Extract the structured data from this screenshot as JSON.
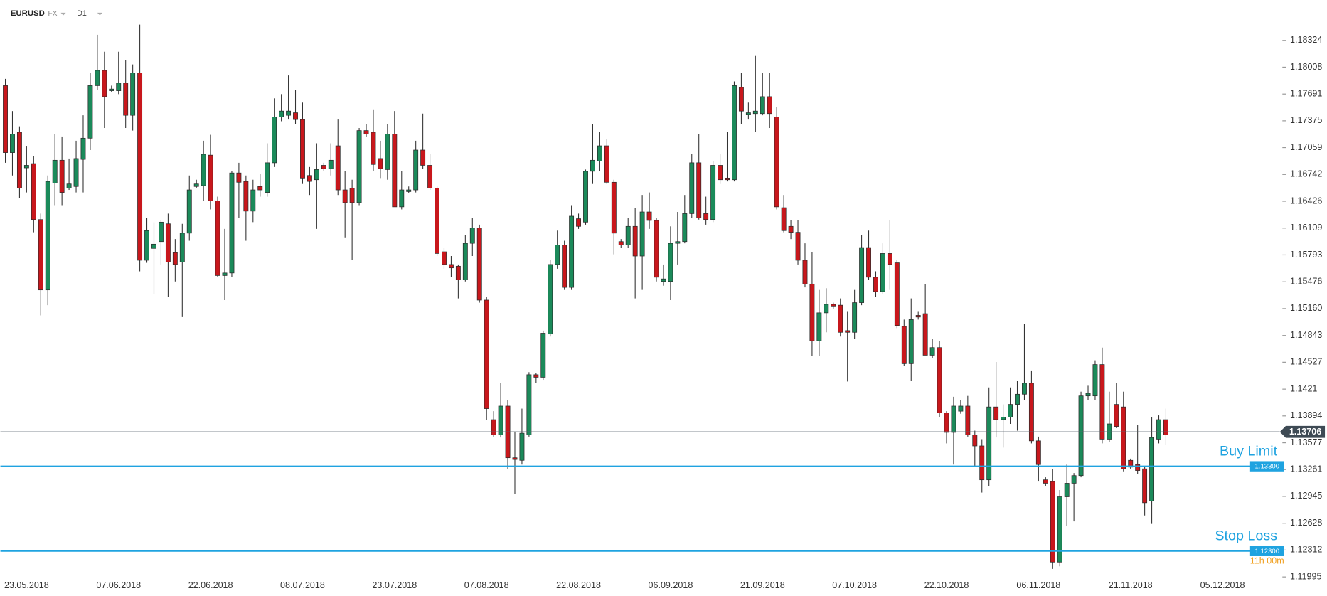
{
  "header": {
    "symbol": "EURUSD",
    "market": "FX",
    "timeframe": "D1"
  },
  "chart_data": {
    "type": "candlestick",
    "up_color": "#1b8a5a",
    "down_color": "#c8171c",
    "grid": false,
    "xlim": [
      -0.7,
      179.5
    ],
    "xticks": [
      {
        "value": 3,
        "label": "23.05.2018"
      },
      {
        "value": 16,
        "label": "07.06.2018"
      },
      {
        "value": 29,
        "label": "22.06.2018"
      },
      {
        "value": 42,
        "label": "08.07.2018"
      },
      {
        "value": 55,
        "label": "23.07.2018"
      },
      {
        "value": 68,
        "label": "07.08.2018"
      },
      {
        "value": 81,
        "label": "22.08.2018"
      },
      {
        "value": 94,
        "label": "06.09.2018"
      },
      {
        "value": 107,
        "label": "21.09.2018"
      },
      {
        "value": 120,
        "label": "07.10.2018"
      },
      {
        "value": 133,
        "label": "22.10.2018"
      },
      {
        "value": 146,
        "label": "06.11.2018"
      },
      {
        "value": 159,
        "label": "21.11.2018"
      },
      {
        "value": 172,
        "label": "05.12.2018"
      }
    ],
    "ylim": [
      1.1183,
      1.187
    ],
    "yticks": [
      1.18324,
      1.18008,
      1.17691,
      1.17375,
      1.17059,
      1.16742,
      1.16426,
      1.16109,
      1.15793,
      1.15476,
      {
        "value": 1.1516,
        "label": "1.15160"
      },
      1.14843,
      1.14527,
      1.1421,
      1.13894,
      1.13577,
      1.13261,
      1.12945,
      1.12628,
      1.12312,
      1.11995
    ],
    "current_price": {
      "value": 1.13706,
      "label": "1.13706"
    },
    "orders": [
      {
        "label": "Buy Limit",
        "price": {
          "value": 1.133,
          "label": "1.13300"
        },
        "color": "#1fa3e0"
      },
      {
        "label": "Stop Loss",
        "price": {
          "value": 1.123,
          "label": "1.12300"
        },
        "color": "#1fa3e0"
      }
    ],
    "countdown": "11h 00m",
    "open": [
      1.1779,
      1.17,
      1.1724,
      1.1682,
      1.1687,
      1.1621,
      1.1538,
      1.1664,
      1.1691,
      1.1658,
      1.166,
      1.1692,
      1.1717,
      1.1779,
      1.1797,
      1.1773,
      1.1773,
      1.1782,
      1.1744,
      1.1794,
      1.1573,
      1.1587,
      1.1595,
      1.1616,
      1.1582,
      1.1571,
      1.1605,
      1.166,
      1.1661,
      1.1697,
      1.1643,
      1.1555,
      1.1558,
      1.1676,
      1.1666,
      1.1631,
      1.166,
      1.1653,
      1.1688,
      1.1742,
      1.1744,
      1.1747,
      1.1739,
      1.1673,
      1.1668,
      1.1685,
      1.1681,
      1.1708,
      1.1656,
      1.1658,
      1.1641,
      1.1726,
      1.1724,
      1.1693,
      1.168,
      1.1722,
      1.1636,
      1.1654,
      1.1656,
      1.1703,
      1.1685,
      1.1658,
      1.1583,
      1.1568,
      1.1566,
      1.155,
      1.1593,
      1.1611,
      1.1526,
      1.1385,
      1.1367,
      1.1401,
      1.134,
      1.1337,
      1.1367,
      1.1438,
      1.1435,
      1.1486,
      1.1568,
      1.1591,
      1.1541,
      1.1622,
      1.1618,
      1.1678,
      1.169,
      1.1708,
      1.1665,
      1.1595,
      1.1591,
      1.1613,
      1.1578,
      1.163,
      1.162,
      1.1548,
      1.1548,
      1.1593,
      1.1595,
      1.1628,
      1.1688,
      1.1628,
      1.1621,
      1.1685,
      1.167,
      1.1668,
      1.1777,
      1.1745,
      1.1746,
      1.1746,
      1.1766,
      1.1742,
      1.1635,
      1.1613,
      1.1606,
      1.1573,
      1.1545,
      1.1478,
      1.1511,
      1.1521,
      1.152,
      1.149,
      1.1488,
      1.1523,
      1.1588,
      1.1553,
      1.1536,
      1.1581,
      1.157,
      1.1495,
      1.1451,
      1.1508,
      1.151,
      1.1461,
      1.147,
      1.1393,
      1.137,
      1.1395,
      1.1401,
      1.1367,
      1.1354,
      1.1314,
      1.14,
      1.1385,
      1.1388,
      1.1403,
      1.1415,
      1.1428,
      1.136,
      1.1314,
      1.1312,
      1.1217,
      1.1294,
      1.131,
      1.1319,
      1.1413,
      1.1413,
      1.145,
      1.1362,
      1.1403,
      1.14,
      1.1337,
      1.1332,
      1.1327,
      1.1289,
      1.1362,
      1.1385
    ],
    "high": [
      1.1787,
      1.1749,
      1.1731,
      1.1708,
      1.1696,
      1.1628,
      1.1673,
      1.1722,
      1.1719,
      1.1693,
      1.1714,
      1.1744,
      1.1794,
      1.1839,
      1.1819,
      1.1779,
      1.1819,
      1.1809,
      1.1804,
      1.1851,
      1.1623,
      1.1618,
      1.162,
      1.1628,
      1.1598,
      1.1616,
      1.1673,
      1.1668,
      1.1714,
      1.1721,
      1.1648,
      1.161,
      1.1678,
      1.1688,
      1.1673,
      1.1668,
      1.1675,
      1.1711,
      1.1764,
      1.1769,
      1.1791,
      1.1774,
      1.1759,
      1.1683,
      1.1711,
      1.1688,
      1.1711,
      1.1739,
      1.1678,
      1.1668,
      1.1729,
      1.1734,
      1.1751,
      1.1714,
      1.1734,
      1.1749,
      1.1678,
      1.166,
      1.1714,
      1.1746,
      1.1698,
      1.166,
      1.1588,
      1.1578,
      1.1568,
      1.1603,
      1.1623,
      1.1615,
      1.153,
      1.1395,
      1.1428,
      1.1408,
      1.1371,
      1.1398,
      1.1441,
      1.144,
      1.149,
      1.1573,
      1.1608,
      1.1596,
      1.1638,
      1.1628,
      1.168,
      1.1734,
      1.1724,
      1.1716,
      1.1668,
      1.1598,
      1.1623,
      1.1635,
      1.165,
      1.1653,
      1.1623,
      1.1568,
      1.1613,
      1.163,
      1.165,
      1.1698,
      1.1722,
      1.1648,
      1.169,
      1.1698,
      1.1724,
      1.1784,
      1.1794,
      1.1759,
      1.1814,
      1.1794,
      1.1794,
      1.1754,
      1.165,
      1.162,
      1.162,
      1.1593,
      1.1583,
      1.1538,
      1.154,
      1.1523,
      1.1528,
      1.1513,
      1.1538,
      1.1603,
      1.1608,
      1.156,
      1.1593,
      1.162,
      1.1573,
      1.1503,
      1.1528,
      1.1513,
      1.1545,
      1.148,
      1.1478,
      1.1395,
      1.1412,
      1.1408,
      1.1413,
      1.1372,
      1.1362,
      1.1423,
      1.1453,
      1.1403,
      1.1423,
      1.1431,
      1.1498,
      1.1443,
      1.1365,
      1.1317,
      1.1327,
      1.1302,
      1.1332,
      1.1322,
      1.1418,
      1.1425,
      1.1455,
      1.147,
      1.1418,
      1.1428,
      1.1418,
      1.1339,
      1.1379,
      1.1329,
      1.1388,
      1.139,
      1.1398
    ],
    "low": [
      1.1688,
      1.1673,
      1.1646,
      1.1653,
      1.1606,
      1.1508,
      1.152,
      1.1638,
      1.1638,
      1.1656,
      1.1653,
      1.1653,
      1.1703,
      1.1774,
      1.1729,
      1.1771,
      1.1769,
      1.1729,
      1.1726,
      1.156,
      1.157,
      1.1533,
      1.1568,
      1.153,
      1.1548,
      1.1506,
      1.1596,
      1.1658,
      1.1643,
      1.1633,
      1.1553,
      1.1526,
      1.1553,
      1.1623,
      1.1596,
      1.1618,
      1.1648,
      1.1648,
      1.1683,
      1.1737,
      1.1739,
      1.1734,
      1.1663,
      1.165,
      1.161,
      1.1678,
      1.1673,
      1.165,
      1.16,
      1.1573,
      1.1638,
      1.1719,
      1.1678,
      1.167,
      1.1668,
      1.1636,
      1.1633,
      1.1652,
      1.1653,
      1.1681,
      1.1656,
      1.1578,
      1.1563,
      1.1553,
      1.1528,
      1.1548,
      1.1578,
      1.1523,
      1.1385,
      1.1365,
      1.1364,
      1.1327,
      1.1297,
      1.1332,
      1.1365,
      1.1428,
      1.1432,
      1.1483,
      1.1563,
      1.1538,
      1.1538,
      1.161,
      1.1615,
      1.1663,
      1.1678,
      1.1663,
      1.158,
      1.1588,
      1.1588,
      1.1528,
      1.1538,
      1.161,
      1.1548,
      1.1543,
      1.1526,
      1.1568,
      1.1593,
      1.1623,
      1.1621,
      1.1615,
      1.1618,
      1.1663,
      1.1666,
      1.1666,
      1.1734,
      1.1739,
      1.1724,
      1.1744,
      1.1729,
      1.1633,
      1.1606,
      1.1598,
      1.1568,
      1.1541,
      1.146,
      1.146,
      1.1488,
      1.1516,
      1.1483,
      1.143,
      1.148,
      1.152,
      1.155,
      1.153,
      1.1533,
      1.1538,
      1.1493,
      1.1448,
      1.1431,
      1.1503,
      1.1461,
      1.1458,
      1.1388,
      1.1357,
      1.1332,
      1.1392,
      1.1365,
      1.1329,
      1.1299,
      1.1307,
      1.1364,
      1.1352,
      1.138,
      1.1372,
      1.1408,
      1.1357,
      1.1312,
      1.1307,
      1.1209,
      1.1212,
      1.126,
      1.1265,
      1.1317,
      1.1408,
      1.1408,
      1.1357,
      1.1359,
      1.1375,
      1.1324,
      1.1327,
      1.1321,
      1.1272,
      1.1262,
      1.1357,
      1.1355
    ],
    "close": [
      1.17,
      1.1722,
      1.1658,
      1.1685,
      1.1621,
      1.1538,
      1.1666,
      1.1691,
      1.1653,
      1.1663,
      1.1693,
      1.1717,
      1.1779,
      1.1797,
      1.1766,
      1.1775,
      1.1782,
      1.1744,
      1.1794,
      1.1573,
      1.1608,
      1.1592,
      1.1618,
      1.1571,
      1.1568,
      1.1605,
      1.1656,
      1.1663,
      1.1698,
      1.1643,
      1.1555,
      1.1558,
      1.1676,
      1.1665,
      1.1631,
      1.1656,
      1.1656,
      1.1688,
      1.1742,
      1.1749,
      1.1749,
      1.1739,
      1.167,
      1.1666,
      1.168,
      1.1681,
      1.1691,
      1.1656,
      1.1641,
      1.1641,
      1.1726,
      1.1722,
      1.1686,
      1.1681,
      1.1722,
      1.1636,
      1.1656,
      1.1656,
      1.1703,
      1.1685,
      1.1658,
      1.1581,
      1.1568,
      1.1564,
      1.155,
      1.1593,
      1.1611,
      1.1526,
      1.1398,
      1.1367,
      1.1401,
      1.134,
      1.1338,
      1.1369,
      1.1438,
      1.1435,
      1.1487,
      1.1568,
      1.1591,
      1.1541,
      1.1625,
      1.1613,
      1.1678,
      1.1691,
      1.1708,
      1.1665,
      1.1605,
      1.1591,
      1.1613,
      1.1578,
      1.163,
      1.162,
      1.1553,
      1.1551,
      1.1593,
      1.1595,
      1.1628,
      1.1688,
      1.1623,
      1.1621,
      1.1685,
      1.1668,
      1.1668,
      1.1779,
      1.1749,
      1.1747,
      1.1749,
      1.1766,
      1.1746,
      1.1636,
      1.1608,
      1.1606,
      1.1573,
      1.1545,
      1.1478,
      1.1511,
      1.1521,
      1.1519,
      1.1488,
      1.1488,
      1.1523,
      1.1588,
      1.1553,
      1.1536,
      1.1581,
      1.1568,
      1.1496,
      1.1451,
      1.1503,
      1.1506,
      1.1461,
      1.147,
      1.1393,
      1.137,
      1.1401,
      1.1401,
      1.1367,
      1.1354,
      1.1314,
      1.14,
      1.1385,
      1.1388,
      1.1403,
      1.1415,
      1.1428,
      1.136,
      1.1332,
      1.131,
      1.1217,
      1.1294,
      1.131,
      1.1319,
      1.1413,
      1.1416,
      1.145,
      1.1362,
      1.138,
      1.1377,
      1.1327,
      1.1329,
      1.1325,
      1.1287,
      1.1364,
      1.1385,
      1.1367
    ]
  }
}
